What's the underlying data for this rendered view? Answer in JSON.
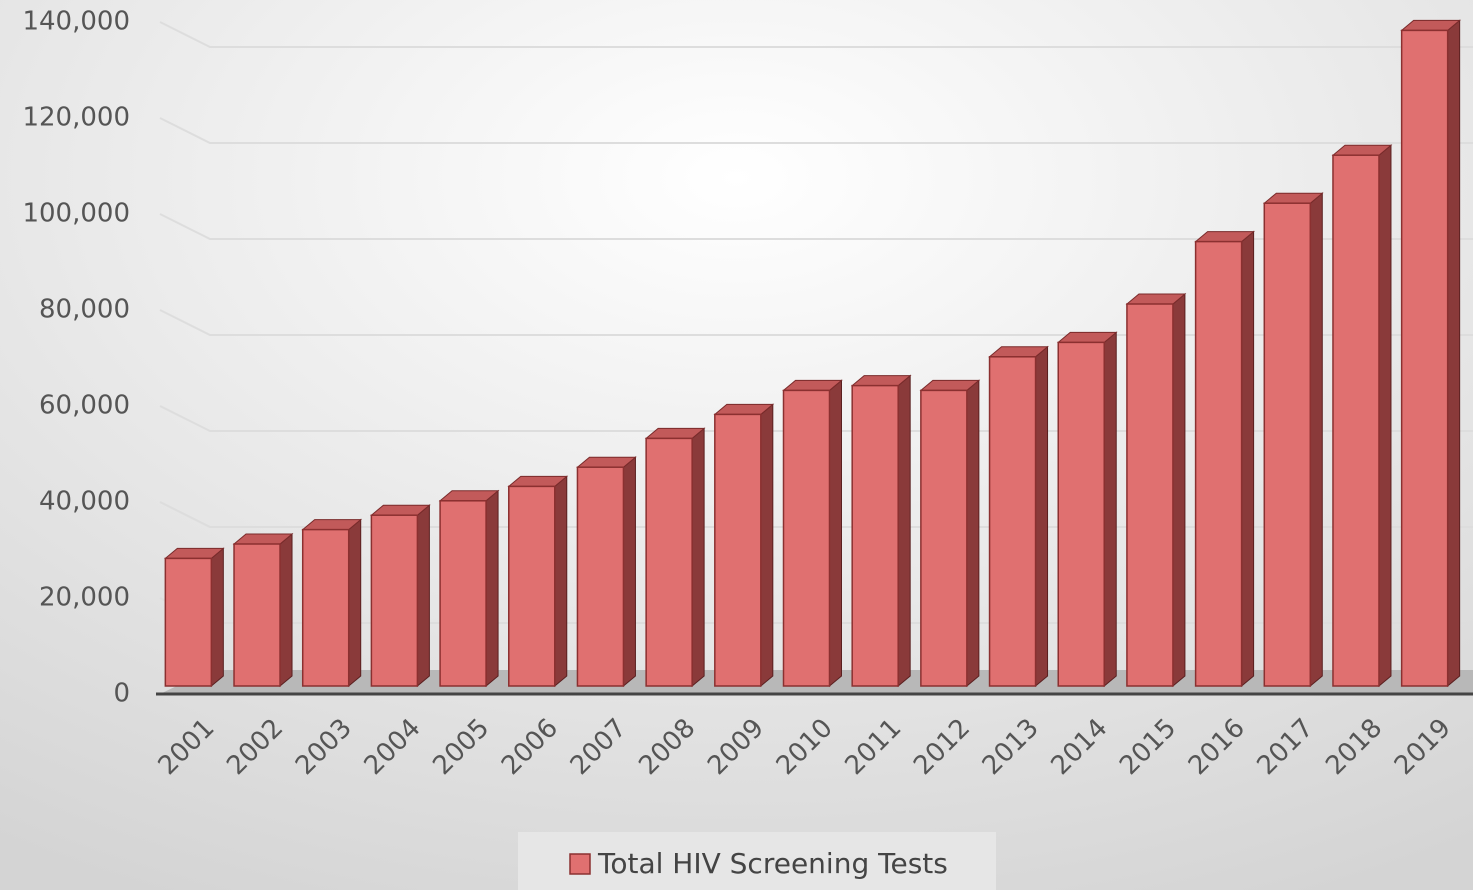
{
  "chart_data": {
    "type": "bar3d",
    "categories": [
      "2001",
      "2002",
      "2003",
      "2004",
      "2005",
      "2006",
      "2007",
      "2008",
      "2009",
      "2010",
      "2011",
      "2012",
      "2013",
      "2014",
      "2015",
      "2016",
      "2017",
      "2018",
      "2019"
    ],
    "series": [
      {
        "name": "Total HIV Screening Tests",
        "color": "#e07070",
        "values": [
          27000,
          30000,
          33000,
          36000,
          39000,
          42000,
          46000,
          52000,
          57000,
          62000,
          63000,
          62000,
          69000,
          72000,
          80000,
          93000,
          101000,
          111000,
          137000
        ]
      }
    ],
    "ylim": [
      0,
      140000
    ],
    "yticks": [
      0,
      {
        "value": 20000,
        "label": "20,000"
      },
      {
        "value": 40000,
        "label": "40,000"
      },
      {
        "value": 60000,
        "label": "60,000"
      },
      {
        "value": 80000,
        "label": "80,000"
      },
      {
        "value": 100000,
        "label": "100,000"
      },
      {
        "value": 120000,
        "label": "120,000"
      },
      {
        "value": 140000,
        "label": "140,000"
      }
    ],
    "grid": true,
    "legend": "bottom"
  }
}
